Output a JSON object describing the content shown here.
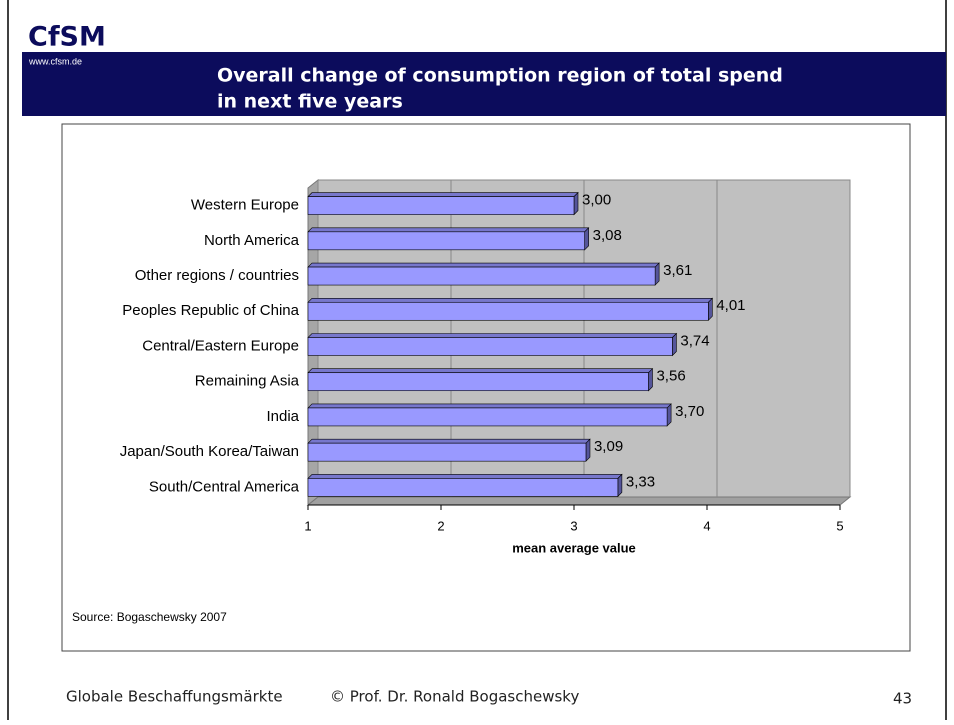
{
  "header": {
    "logo": "CfSM",
    "url": "www.cfsm.de",
    "title_lines": [
      "Overall change of consumption region of total spend",
      "in next five years"
    ]
  },
  "chart_data": {
    "type": "bar",
    "orientation": "horizontal",
    "categories": [
      "Western Europe",
      "North America",
      "Other regions / countries",
      "Peoples Republic of China",
      "Central/Eastern Europe",
      "Remaining Asia",
      "India",
      "Japan/South Korea/Taiwan",
      "South/Central America"
    ],
    "values": [
      3.0,
      3.08,
      3.61,
      4.01,
      3.74,
      3.56,
      3.7,
      3.09,
      3.33
    ],
    "value_labels": [
      "3,00",
      "3,08",
      "3,61",
      "4,01",
      "3,74",
      "3,56",
      "3,70",
      "3,09",
      "3,33"
    ],
    "color": "#9999ff",
    "xlim": [
      1,
      5
    ],
    "xticks": [
      1,
      2,
      3,
      4,
      5
    ],
    "x_label": "mean average value",
    "grid": true,
    "source": "Source: Bogaschewsky 2007"
  },
  "footer": {
    "left": "Globale Beschaffungsmärkte",
    "center": "© Prof. Dr. Ronald Bogaschewsky",
    "page": "43"
  }
}
